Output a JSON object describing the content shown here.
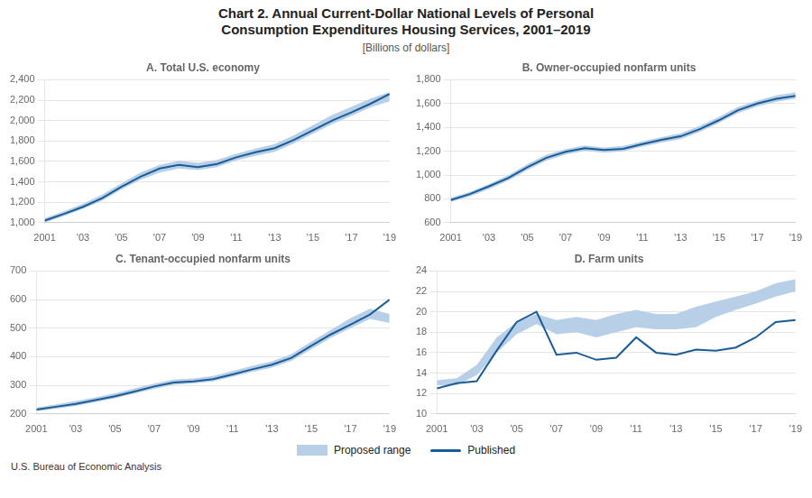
{
  "title": [
    "Chart 2. Annual Current-Dollar National Levels of Personal",
    "Consumption Expenditures Housing Services, 2001–2019"
  ],
  "subtitle": "[Billions of dollars]",
  "annotations": [
    "U.S. Bureau of Economic Analysis"
  ],
  "legend": "bottom",
  "chart_data": [
    {
      "type": "line",
      "title": "A. Total U.S. economy",
      "x": [
        2001,
        2002,
        2003,
        2004,
        2005,
        2006,
        2007,
        2008,
        2009,
        2010,
        2011,
        2012,
        2013,
        2014,
        2015,
        2016,
        2017,
        2018,
        2019
      ],
      "series": [
        {
          "name": "Proposed range",
          "type": "band",
          "color": "#b8cfe8",
          "low": [
            1000,
            1065,
            1135,
            1215,
            1325,
            1420,
            1490,
            1530,
            1515,
            1545,
            1610,
            1655,
            1695,
            1775,
            1870,
            1965,
            2045,
            2130,
            2190
          ],
          "high": [
            1045,
            1110,
            1185,
            1275,
            1385,
            1490,
            1565,
            1605,
            1585,
            1615,
            1675,
            1725,
            1770,
            1855,
            1955,
            2055,
            2135,
            2215,
            2280
          ]
        },
        {
          "name": "Published",
          "type": "line",
          "color": "#1a5c96",
          "values": [
            1020,
            1085,
            1155,
            1240,
            1350,
            1450,
            1530,
            1565,
            1545,
            1575,
            1640,
            1690,
            1730,
            1810,
            1905,
            2000,
            2080,
            2165,
            2260
          ]
        }
      ],
      "xlim": [
        2001,
        2019
      ],
      "xticks": [
        2001,
        {
          "value": 2003,
          "label": "'03"
        },
        {
          "value": 2005,
          "label": "'05"
        },
        {
          "value": 2007,
          "label": "'07"
        },
        {
          "value": 2009,
          "label": "'09"
        },
        {
          "value": 2011,
          "label": "'11"
        },
        {
          "value": 2013,
          "label": "'13"
        },
        {
          "value": 2015,
          "label": "'15"
        },
        {
          "value": 2017,
          "label": "'17"
        },
        {
          "value": 2019,
          "label": "'19"
        }
      ],
      "ylim": [
        1000,
        2400
      ],
      "yticks": [
        {
          "value": 1000,
          "label": "1,000"
        },
        {
          "value": 1200,
          "label": "1,200"
        },
        {
          "value": 1400,
          "label": "1,400"
        },
        {
          "value": 1600,
          "label": "1,600"
        },
        {
          "value": 1800,
          "label": "1,800"
        },
        {
          "value": 2000,
          "label": "2,000"
        },
        {
          "value": 2200,
          "label": "2,200"
        },
        {
          "value": 2400,
          "label": "2,400"
        }
      ],
      "grid": true
    },
    {
      "type": "line",
      "title": "B. Owner-occupied nonfarm units",
      "x": [
        2001,
        2002,
        2003,
        2004,
        2005,
        2006,
        2007,
        2008,
        2009,
        2010,
        2011,
        2012,
        2013,
        2014,
        2015,
        2016,
        2017,
        2018,
        2019
      ],
      "series": [
        {
          "name": "Proposed range",
          "type": "band",
          "color": "#b8cfe8",
          "low": [
            775,
            820,
            882,
            952,
            1042,
            1122,
            1172,
            1202,
            1188,
            1198,
            1238,
            1272,
            1302,
            1362,
            1438,
            1520,
            1575,
            1615,
            1640
          ],
          "high": [
            808,
            858,
            925,
            998,
            1090,
            1170,
            1218,
            1248,
            1232,
            1245,
            1282,
            1318,
            1350,
            1412,
            1488,
            1572,
            1625,
            1668,
            1695
          ]
        },
        {
          "name": "Published",
          "type": "line",
          "color": "#1a5c96",
          "values": [
            790,
            840,
            905,
            975,
            1065,
            1145,
            1195,
            1225,
            1210,
            1220,
            1260,
            1295,
            1325,
            1385,
            1460,
            1545,
            1600,
            1640,
            1665
          ]
        }
      ],
      "xlim": [
        2001,
        2019
      ],
      "xticks": [
        2001,
        {
          "value": 2003,
          "label": "'03"
        },
        {
          "value": 2005,
          "label": "'05"
        },
        {
          "value": 2007,
          "label": "'07"
        },
        {
          "value": 2009,
          "label": "'09"
        },
        {
          "value": 2011,
          "label": "'11"
        },
        {
          "value": 2013,
          "label": "'13"
        },
        {
          "value": 2015,
          "label": "'15"
        },
        {
          "value": 2017,
          "label": "'17"
        },
        {
          "value": 2019,
          "label": "'19"
        }
      ],
      "ylim": [
        600,
        1800
      ],
      "yticks": [
        600,
        800,
        {
          "value": 1000,
          "label": "1,000"
        },
        {
          "value": 1200,
          "label": "1,200"
        },
        {
          "value": 1400,
          "label": "1,400"
        },
        {
          "value": 1600,
          "label": "1,600"
        },
        {
          "value": 1800,
          "label": "1,800"
        }
      ],
      "grid": true
    },
    {
      "type": "line",
      "title": "C. Tenant-occupied nonfarm units",
      "x": [
        2001,
        2002,
        2003,
        2004,
        2005,
        2006,
        2007,
        2008,
        2009,
        2010,
        2011,
        2012,
        2013,
        2014,
        2015,
        2016,
        2017,
        2018,
        2019
      ],
      "series": [
        {
          "name": "Proposed range",
          "type": "band",
          "color": "#b8cfe8",
          "low": [
            210,
            218,
            228,
            241,
            255,
            271,
            288,
            302,
            307,
            314,
            330,
            347,
            362,
            386,
            426,
            466,
            500,
            532,
            518
          ],
          "high": [
            222,
            233,
            245,
            258,
            272,
            289,
            306,
            320,
            324,
            333,
            350,
            368,
            384,
            409,
            453,
            494,
            535,
            568,
            550
          ]
        },
        {
          "name": "Published",
          "type": "line",
          "color": "#1a5c96",
          "values": [
            215,
            225,
            235,
            248,
            262,
            278,
            296,
            310,
            314,
            322,
            338,
            356,
            372,
            396,
            438,
            478,
            512,
            548,
            600
          ]
        }
      ],
      "xlim": [
        2001,
        2019
      ],
      "xticks": [
        2001,
        {
          "value": 2003,
          "label": "'03"
        },
        {
          "value": 2005,
          "label": "'05"
        },
        {
          "value": 2007,
          "label": "'07"
        },
        {
          "value": 2009,
          "label": "'09"
        },
        {
          "value": 2011,
          "label": "'11"
        },
        {
          "value": 2013,
          "label": "'13"
        },
        {
          "value": 2015,
          "label": "'15"
        },
        {
          "value": 2017,
          "label": "'17"
        },
        {
          "value": 2019,
          "label": "'19"
        }
      ],
      "ylim": [
        200,
        700
      ],
      "yticks": [
        200,
        300,
        400,
        500,
        600,
        700
      ],
      "grid": true
    },
    {
      "type": "line",
      "title": "D. Farm units",
      "x": [
        2001,
        2002,
        2003,
        2004,
        2005,
        2006,
        2007,
        2008,
        2009,
        2010,
        2011,
        2012,
        2013,
        2014,
        2015,
        2016,
        2017,
        2018,
        2019
      ],
      "series": [
        {
          "name": "Proposed range",
          "type": "band",
          "color": "#b8cfe8",
          "low": [
            12.8,
            12.8,
            13.8,
            16.0,
            17.8,
            18.8,
            17.8,
            18.0,
            17.5,
            18.0,
            18.5,
            18.3,
            18.3,
            18.5,
            19.5,
            20.2,
            20.8,
            21.5,
            22.0
          ],
          "high": [
            13.3,
            13.5,
            14.8,
            17.5,
            19.0,
            19.8,
            19.2,
            19.5,
            19.2,
            19.8,
            20.2,
            19.8,
            19.8,
            20.5,
            21.0,
            21.5,
            22.0,
            22.8,
            23.2
          ]
        },
        {
          "name": "Published",
          "type": "line",
          "color": "#1a5c96",
          "values": [
            12.5,
            13.0,
            13.2,
            16.2,
            19.0,
            20.0,
            15.8,
            16.0,
            15.3,
            15.5,
            17.5,
            16.0,
            15.8,
            16.3,
            16.2,
            16.5,
            17.5,
            19.0,
            19.2
          ]
        }
      ],
      "xlim": [
        2001,
        2019
      ],
      "xticks": [
        2001,
        {
          "value": 2003,
          "label": "'03"
        },
        {
          "value": 2005,
          "label": "'05"
        },
        {
          "value": 2007,
          "label": "'07"
        },
        {
          "value": 2009,
          "label": "'09"
        },
        {
          "value": 2011,
          "label": "'11"
        },
        {
          "value": 2013,
          "label": "'13"
        },
        {
          "value": 2015,
          "label": "'15"
        },
        {
          "value": 2017,
          "label": "'17"
        },
        {
          "value": 2019,
          "label": "'19"
        }
      ],
      "ylim": [
        10,
        24
      ],
      "yticks": [
        10,
        12,
        14,
        16,
        18,
        20,
        22,
        24
      ],
      "grid": true
    }
  ]
}
